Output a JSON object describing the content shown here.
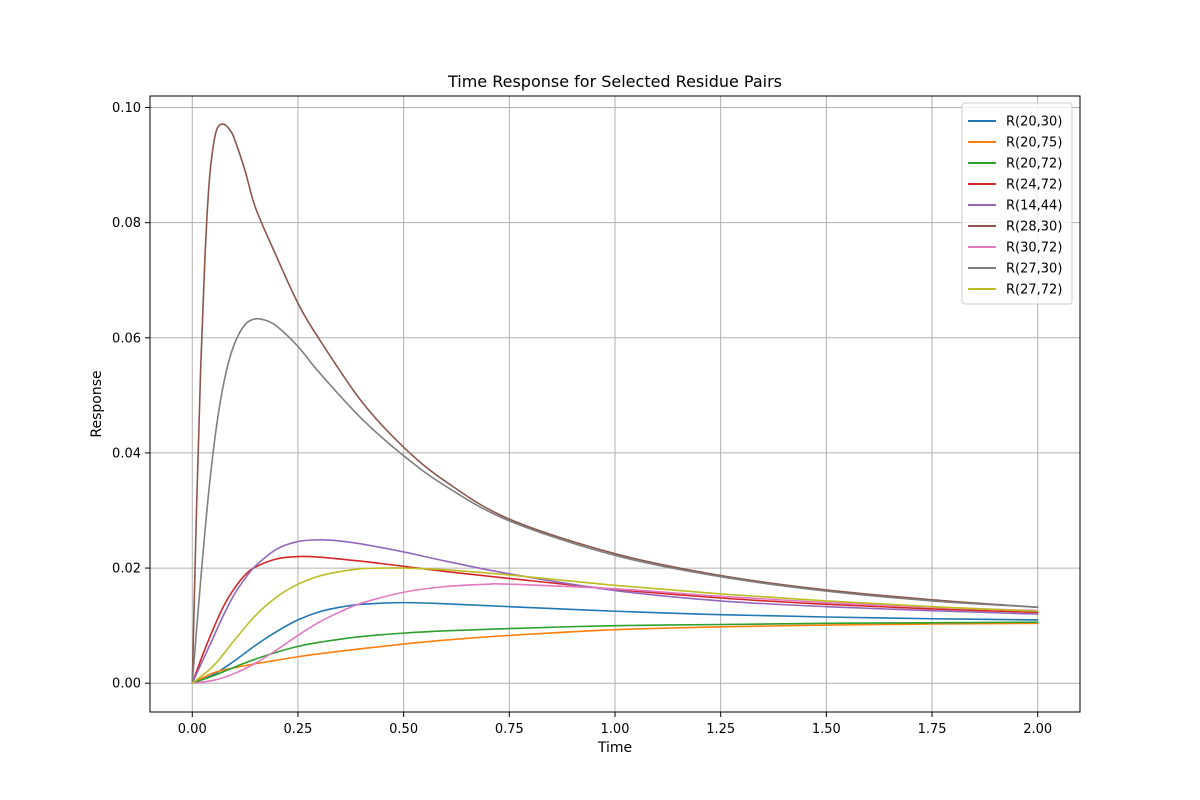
{
  "chart_data": {
    "type": "line",
    "title": "Time Response for Selected Residue Pairs",
    "xlabel": "Time",
    "ylabel": "Response",
    "xlim": [
      -0.1,
      2.1
    ],
    "ylim": [
      -0.005,
      0.102
    ],
    "xticks": [
      0.0,
      0.25,
      0.5,
      0.75,
      1.0,
      1.25,
      1.5,
      1.75,
      2.0
    ],
    "xtick_labels": [
      "0.00",
      "0.25",
      "0.50",
      "0.75",
      "1.00",
      "1.25",
      "1.50",
      "1.75",
      "2.00"
    ],
    "yticks": [
      0.0,
      0.02,
      0.04,
      0.06,
      0.08,
      0.1
    ],
    "ytick_labels": [
      "0.00",
      "0.02",
      "0.04",
      "0.06",
      "0.08",
      "0.10"
    ],
    "grid": true,
    "legend_position": "top-right",
    "series": [
      {
        "name": "R(20,30)",
        "color": "#1f77b4",
        "x": [
          0,
          0.05,
          0.1,
          0.15,
          0.2,
          0.25,
          0.3,
          0.35,
          0.4,
          0.5,
          0.6,
          0.75,
          1.0,
          1.25,
          1.5,
          1.75,
          2.0
        ],
        "y": [
          0,
          0.0015,
          0.0039,
          0.0066,
          0.009,
          0.011,
          0.0124,
          0.0132,
          0.0137,
          0.014,
          0.0138,
          0.0133,
          0.0125,
          0.0119,
          0.0115,
          0.0112,
          0.011
        ]
      },
      {
        "name": "R(20,75)",
        "color": "#ff7f0e",
        "x": [
          0,
          0.05,
          0.1,
          0.15,
          0.2,
          0.25,
          0.3,
          0.4,
          0.5,
          0.6,
          0.75,
          1.0,
          1.25,
          1.5,
          1.75,
          2.0
        ],
        "y": [
          0,
          0.0018,
          0.0027,
          0.0034,
          0.004,
          0.0046,
          0.0051,
          0.006,
          0.0068,
          0.0075,
          0.0083,
          0.0093,
          0.0098,
          0.0101,
          0.0103,
          0.0104
        ]
      },
      {
        "name": "R(20,72)",
        "color": "#2ca02c",
        "x": [
          0,
          0.05,
          0.1,
          0.15,
          0.2,
          0.25,
          0.3,
          0.4,
          0.5,
          0.6,
          0.75,
          1.0,
          1.25,
          1.5,
          1.75,
          2.0
        ],
        "y": [
          0,
          0.0013,
          0.0028,
          0.0042,
          0.0054,
          0.0064,
          0.0071,
          0.0081,
          0.0087,
          0.0091,
          0.0095,
          0.01,
          0.0102,
          0.0104,
          0.0105,
          0.0106
        ]
      },
      {
        "name": "R(24,72)",
        "color": "#d62728",
        "x": [
          0,
          0.025,
          0.05,
          0.075,
          0.1,
          0.125,
          0.15,
          0.2,
          0.25,
          0.3,
          0.4,
          0.5,
          0.6,
          0.75,
          1.0,
          1.25,
          1.5,
          1.75,
          2.0
        ],
        "y": [
          0,
          0.005,
          0.0095,
          0.0135,
          0.0165,
          0.0188,
          0.0202,
          0.0216,
          0.022,
          0.0219,
          0.0212,
          0.0203,
          0.0194,
          0.0182,
          0.0163,
          0.0148,
          0.0137,
          0.0129,
          0.0123
        ]
      },
      {
        "name": "R(14,44)",
        "color": "#9467bd",
        "x": [
          0,
          0.025,
          0.05,
          0.075,
          0.1,
          0.125,
          0.15,
          0.2,
          0.25,
          0.3,
          0.35,
          0.4,
          0.5,
          0.6,
          0.75,
          1.0,
          1.25,
          1.5,
          1.75,
          2.0
        ],
        "y": [
          0,
          0.004,
          0.008,
          0.012,
          0.0155,
          0.0182,
          0.0204,
          0.0233,
          0.0246,
          0.0249,
          0.0247,
          0.0242,
          0.0228,
          0.0212,
          0.019,
          0.0161,
          0.0143,
          0.0133,
          0.0126,
          0.012
        ]
      },
      {
        "name": "R(28,30)",
        "color": "#8c564b",
        "x": [
          0,
          0.01,
          0.02,
          0.03,
          0.04,
          0.05,
          0.06,
          0.075,
          0.09,
          0.1,
          0.125,
          0.15,
          0.2,
          0.25,
          0.3,
          0.4,
          0.5,
          0.6,
          0.75,
          1.0,
          1.25,
          1.5,
          1.75,
          2.0
        ],
        "y": [
          0,
          0.03,
          0.055,
          0.074,
          0.087,
          0.0935,
          0.0965,
          0.0971,
          0.096,
          0.0945,
          0.089,
          0.0825,
          0.074,
          0.066,
          0.0598,
          0.049,
          0.041,
          0.035,
          0.0285,
          0.0225,
          0.0187,
          0.0162,
          0.0145,
          0.0132
        ]
      },
      {
        "name": "R(30,72)",
        "color": "#e377c2",
        "x": [
          0,
          0.05,
          0.1,
          0.15,
          0.2,
          0.25,
          0.3,
          0.35,
          0.4,
          0.5,
          0.6,
          0.7,
          0.75,
          1.0,
          1.25,
          1.5,
          1.75,
          2.0
        ],
        "y": [
          0,
          0.0005,
          0.0017,
          0.0035,
          0.0058,
          0.0083,
          0.0106,
          0.0124,
          0.0139,
          0.0158,
          0.0168,
          0.0172,
          0.0172,
          0.0164,
          0.0151,
          0.014,
          0.0132,
          0.0126
        ]
      },
      {
        "name": "R(27,30)",
        "color": "#7f7f7f",
        "x": [
          0,
          0.02,
          0.04,
          0.06,
          0.08,
          0.1,
          0.125,
          0.15,
          0.175,
          0.2,
          0.25,
          0.3,
          0.4,
          0.5,
          0.6,
          0.75,
          1.0,
          1.25,
          1.5,
          1.75,
          2.0
        ],
        "y": [
          0,
          0.018,
          0.034,
          0.046,
          0.054,
          0.059,
          0.0623,
          0.0633,
          0.063,
          0.062,
          0.0585,
          0.054,
          0.046,
          0.0395,
          0.0342,
          0.0282,
          0.0222,
          0.0185,
          0.016,
          0.0143,
          0.0132
        ]
      },
      {
        "name": "R(27,72)",
        "color": "#bcbd22",
        "x": [
          0,
          0.05,
          0.1,
          0.15,
          0.2,
          0.25,
          0.3,
          0.35,
          0.4,
          0.45,
          0.5,
          0.6,
          0.75,
          1.0,
          1.25,
          1.5,
          1.75,
          2.0
        ],
        "y": [
          0,
          0.003,
          0.0075,
          0.0118,
          0.015,
          0.0172,
          0.0186,
          0.0194,
          0.0199,
          0.02,
          0.02,
          0.0197,
          0.0188,
          0.017,
          0.0155,
          0.0143,
          0.0133,
          0.0125
        ]
      }
    ]
  }
}
